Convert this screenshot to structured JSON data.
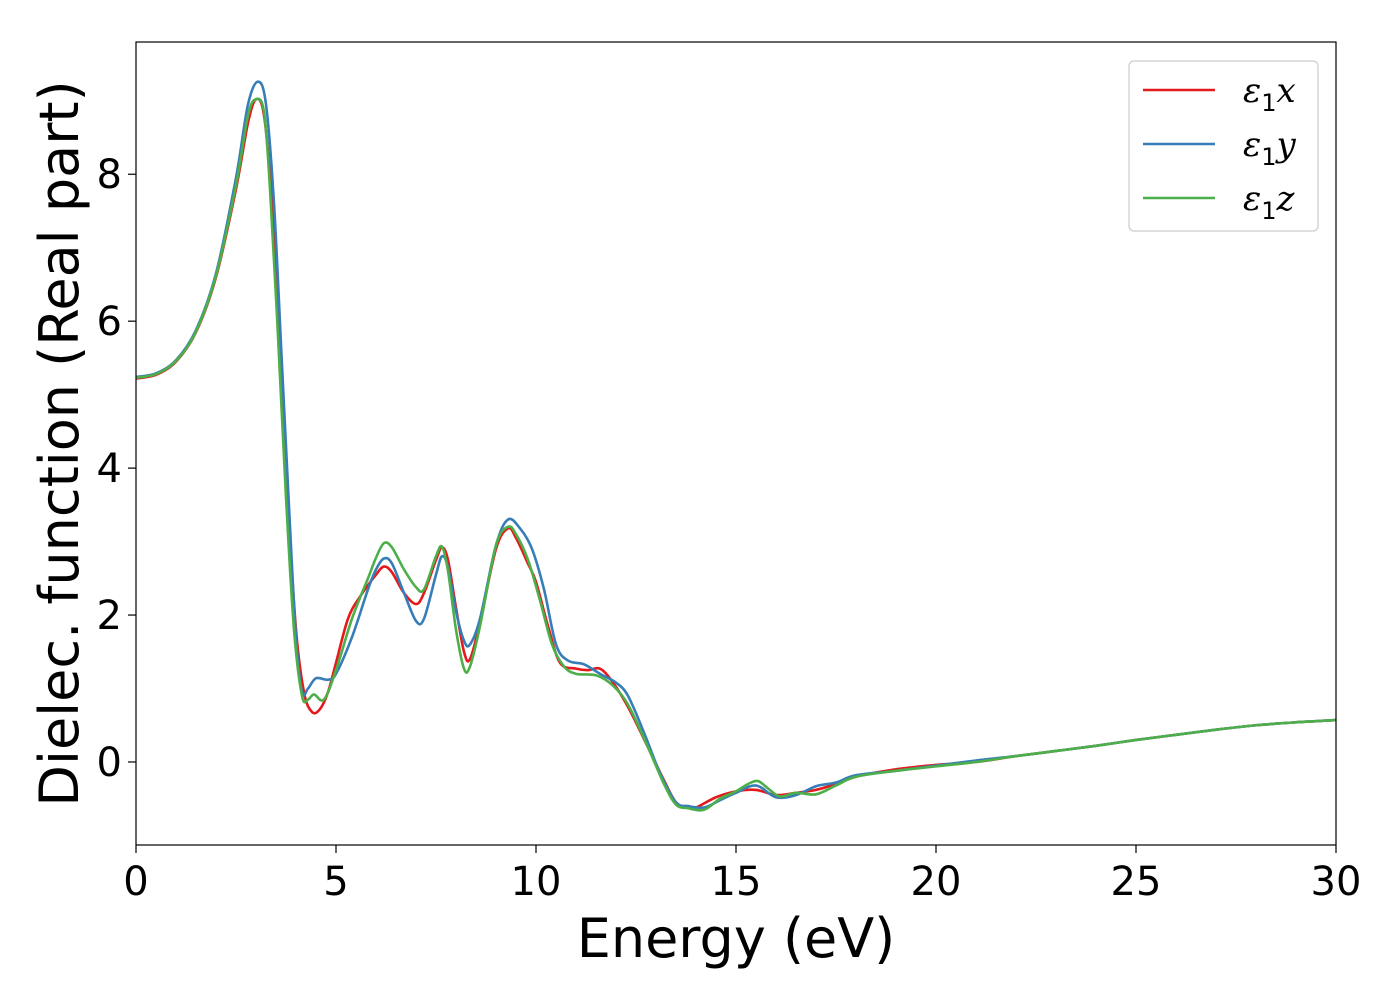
{
  "chart_data": {
    "type": "line",
    "title": "",
    "xlabel": "Energy (eV)",
    "ylabel": "Dielec. function (Real part)",
    "xlim": [
      0,
      30
    ],
    "ylim": [
      -1.13,
      9.8
    ],
    "xticks": [
      0,
      5,
      10,
      15,
      20,
      25,
      30
    ],
    "yticks": [
      0,
      2,
      4,
      6,
      8
    ],
    "grid": false,
    "legend_position": "top-right",
    "series": [
      {
        "name": "ε₁x",
        "legend_base": "ε",
        "legend_sub": "1",
        "legend_var": "x",
        "color": "#e41a1c",
        "points": [
          [
            0,
            5.22
          ],
          [
            0.5,
            5.27
          ],
          [
            1.0,
            5.45
          ],
          [
            1.5,
            5.85
          ],
          [
            2.0,
            6.6
          ],
          [
            2.5,
            7.8
          ],
          [
            2.8,
            8.7
          ],
          [
            3.0,
            9.02
          ],
          [
            3.2,
            8.8
          ],
          [
            3.4,
            7.6
          ],
          [
            3.6,
            5.6
          ],
          [
            3.8,
            3.5
          ],
          [
            4.0,
            1.8
          ],
          [
            4.2,
            0.95
          ],
          [
            4.4,
            0.68
          ],
          [
            4.6,
            0.72
          ],
          [
            4.8,
            0.95
          ],
          [
            5.0,
            1.35
          ],
          [
            5.3,
            1.95
          ],
          [
            5.6,
            2.25
          ],
          [
            6.0,
            2.55
          ],
          [
            6.2,
            2.66
          ],
          [
            6.4,
            2.58
          ],
          [
            6.7,
            2.3
          ],
          [
            7.0,
            2.15
          ],
          [
            7.2,
            2.3
          ],
          [
            7.5,
            2.75
          ],
          [
            7.65,
            2.92
          ],
          [
            7.8,
            2.75
          ],
          [
            8.0,
            2.1
          ],
          [
            8.2,
            1.5
          ],
          [
            8.35,
            1.4
          ],
          [
            8.6,
            1.9
          ],
          [
            9.0,
            2.9
          ],
          [
            9.3,
            3.18
          ],
          [
            9.5,
            3.05
          ],
          [
            9.8,
            2.7
          ],
          [
            10.0,
            2.45
          ],
          [
            10.3,
            1.85
          ],
          [
            10.6,
            1.35
          ],
          [
            11.0,
            1.27
          ],
          [
            11.3,
            1.25
          ],
          [
            11.6,
            1.27
          ],
          [
            11.9,
            1.1
          ],
          [
            12.3,
            0.75
          ],
          [
            12.8,
            0.2
          ],
          [
            13.2,
            -0.25
          ],
          [
            13.5,
            -0.55
          ],
          [
            13.8,
            -0.62
          ],
          [
            14.0,
            -0.62
          ],
          [
            14.5,
            -0.48
          ],
          [
            15.0,
            -0.4
          ],
          [
            15.5,
            -0.38
          ],
          [
            16.0,
            -0.45
          ],
          [
            16.5,
            -0.42
          ],
          [
            17.0,
            -0.38
          ],
          [
            17.5,
            -0.3
          ],
          [
            18.0,
            -0.2
          ],
          [
            19.0,
            -0.1
          ],
          [
            20.0,
            -0.04
          ],
          [
            21.0,
            0.0
          ],
          [
            22.0,
            0.08
          ],
          [
            23.0,
            0.15
          ],
          [
            24.0,
            0.22
          ],
          [
            25.0,
            0.3
          ],
          [
            26.0,
            0.37
          ],
          [
            27.0,
            0.44
          ],
          [
            28.0,
            0.5
          ],
          [
            29.0,
            0.54
          ],
          [
            30.0,
            0.57
          ]
        ]
      },
      {
        "name": "ε₁y",
        "legend_base": "ε",
        "legend_sub": "1",
        "legend_var": "y",
        "color": "#377eb8",
        "points": [
          [
            0,
            5.24
          ],
          [
            0.5,
            5.29
          ],
          [
            1.0,
            5.47
          ],
          [
            1.5,
            5.88
          ],
          [
            2.0,
            6.65
          ],
          [
            2.5,
            7.95
          ],
          [
            2.8,
            8.95
          ],
          [
            3.05,
            9.26
          ],
          [
            3.25,
            8.95
          ],
          [
            3.45,
            7.6
          ],
          [
            3.65,
            5.4
          ],
          [
            3.85,
            3.2
          ],
          [
            4.0,
            1.7
          ],
          [
            4.15,
            0.95
          ],
          [
            4.3,
            1.0
          ],
          [
            4.5,
            1.14
          ],
          [
            4.8,
            1.12
          ],
          [
            5.0,
            1.2
          ],
          [
            5.4,
            1.7
          ],
          [
            5.8,
            2.35
          ],
          [
            6.0,
            2.62
          ],
          [
            6.2,
            2.77
          ],
          [
            6.4,
            2.7
          ],
          [
            6.7,
            2.3
          ],
          [
            7.0,
            1.92
          ],
          [
            7.2,
            1.95
          ],
          [
            7.5,
            2.55
          ],
          [
            7.65,
            2.8
          ],
          [
            7.8,
            2.65
          ],
          [
            8.0,
            2.05
          ],
          [
            8.2,
            1.65
          ],
          [
            8.35,
            1.6
          ],
          [
            8.6,
            1.95
          ],
          [
            9.0,
            2.95
          ],
          [
            9.3,
            3.3
          ],
          [
            9.6,
            3.18
          ],
          [
            9.9,
            2.9
          ],
          [
            10.2,
            2.35
          ],
          [
            10.5,
            1.6
          ],
          [
            10.8,
            1.38
          ],
          [
            11.2,
            1.33
          ],
          [
            11.6,
            1.2
          ],
          [
            12.0,
            1.08
          ],
          [
            12.3,
            0.9
          ],
          [
            12.7,
            0.4
          ],
          [
            13.1,
            -0.15
          ],
          [
            13.5,
            -0.55
          ],
          [
            13.8,
            -0.6
          ],
          [
            14.2,
            -0.62
          ],
          [
            14.6,
            -0.52
          ],
          [
            15.0,
            -0.42
          ],
          [
            15.5,
            -0.32
          ],
          [
            16.0,
            -0.48
          ],
          [
            16.5,
            -0.45
          ],
          [
            17.0,
            -0.33
          ],
          [
            17.5,
            -0.28
          ],
          [
            18.0,
            -0.18
          ],
          [
            19.0,
            -0.12
          ],
          [
            20.0,
            -0.05
          ],
          [
            21.0,
            0.02
          ],
          [
            22.0,
            0.08
          ],
          [
            23.0,
            0.15
          ],
          [
            24.0,
            0.22
          ],
          [
            25.0,
            0.3
          ],
          [
            26.0,
            0.37
          ],
          [
            27.0,
            0.44
          ],
          [
            28.0,
            0.5
          ],
          [
            29.0,
            0.54
          ],
          [
            30.0,
            0.57
          ]
        ]
      },
      {
        "name": "ε₁z",
        "legend_base": "ε",
        "legend_sub": "1",
        "legend_var": "z",
        "color": "#4daf4a",
        "points": [
          [
            0,
            5.23
          ],
          [
            0.5,
            5.28
          ],
          [
            1.0,
            5.46
          ],
          [
            1.5,
            5.86
          ],
          [
            2.0,
            6.62
          ],
          [
            2.5,
            7.85
          ],
          [
            2.8,
            8.8
          ],
          [
            3.0,
            9.02
          ],
          [
            3.2,
            8.85
          ],
          [
            3.35,
            7.8
          ],
          [
            3.55,
            5.8
          ],
          [
            3.75,
            3.6
          ],
          [
            3.95,
            1.8
          ],
          [
            4.15,
            0.9
          ],
          [
            4.3,
            0.85
          ],
          [
            4.45,
            0.92
          ],
          [
            4.7,
            0.85
          ],
          [
            5.0,
            1.25
          ],
          [
            5.4,
            1.95
          ],
          [
            5.8,
            2.5
          ],
          [
            6.0,
            2.78
          ],
          [
            6.2,
            2.98
          ],
          [
            6.4,
            2.92
          ],
          [
            6.7,
            2.62
          ],
          [
            7.0,
            2.38
          ],
          [
            7.2,
            2.35
          ],
          [
            7.5,
            2.8
          ],
          [
            7.65,
            2.93
          ],
          [
            7.8,
            2.6
          ],
          [
            8.0,
            1.8
          ],
          [
            8.2,
            1.27
          ],
          [
            8.35,
            1.3
          ],
          [
            8.6,
            1.85
          ],
          [
            9.0,
            2.95
          ],
          [
            9.3,
            3.2
          ],
          [
            9.5,
            3.1
          ],
          [
            9.8,
            2.75
          ],
          [
            10.1,
            2.2
          ],
          [
            10.4,
            1.6
          ],
          [
            10.7,
            1.3
          ],
          [
            11.0,
            1.2
          ],
          [
            11.5,
            1.18
          ],
          [
            11.9,
            1.05
          ],
          [
            12.3,
            0.78
          ],
          [
            12.8,
            0.2
          ],
          [
            13.2,
            -0.3
          ],
          [
            13.5,
            -0.58
          ],
          [
            13.8,
            -0.63
          ],
          [
            14.2,
            -0.65
          ],
          [
            14.6,
            -0.5
          ],
          [
            15.0,
            -0.4
          ],
          [
            15.3,
            -0.3
          ],
          [
            15.55,
            -0.26
          ],
          [
            15.8,
            -0.36
          ],
          [
            16.1,
            -0.47
          ],
          [
            16.5,
            -0.42
          ],
          [
            17.0,
            -0.44
          ],
          [
            17.5,
            -0.32
          ],
          [
            18.0,
            -0.2
          ],
          [
            19.0,
            -0.12
          ],
          [
            20.0,
            -0.06
          ],
          [
            21.0,
            0.0
          ],
          [
            22.0,
            0.08
          ],
          [
            23.0,
            0.15
          ],
          [
            24.0,
            0.22
          ],
          [
            25.0,
            0.3
          ],
          [
            26.0,
            0.37
          ],
          [
            27.0,
            0.44
          ],
          [
            28.0,
            0.5
          ],
          [
            29.0,
            0.54
          ],
          [
            30.0,
            0.57
          ]
        ]
      }
    ]
  }
}
